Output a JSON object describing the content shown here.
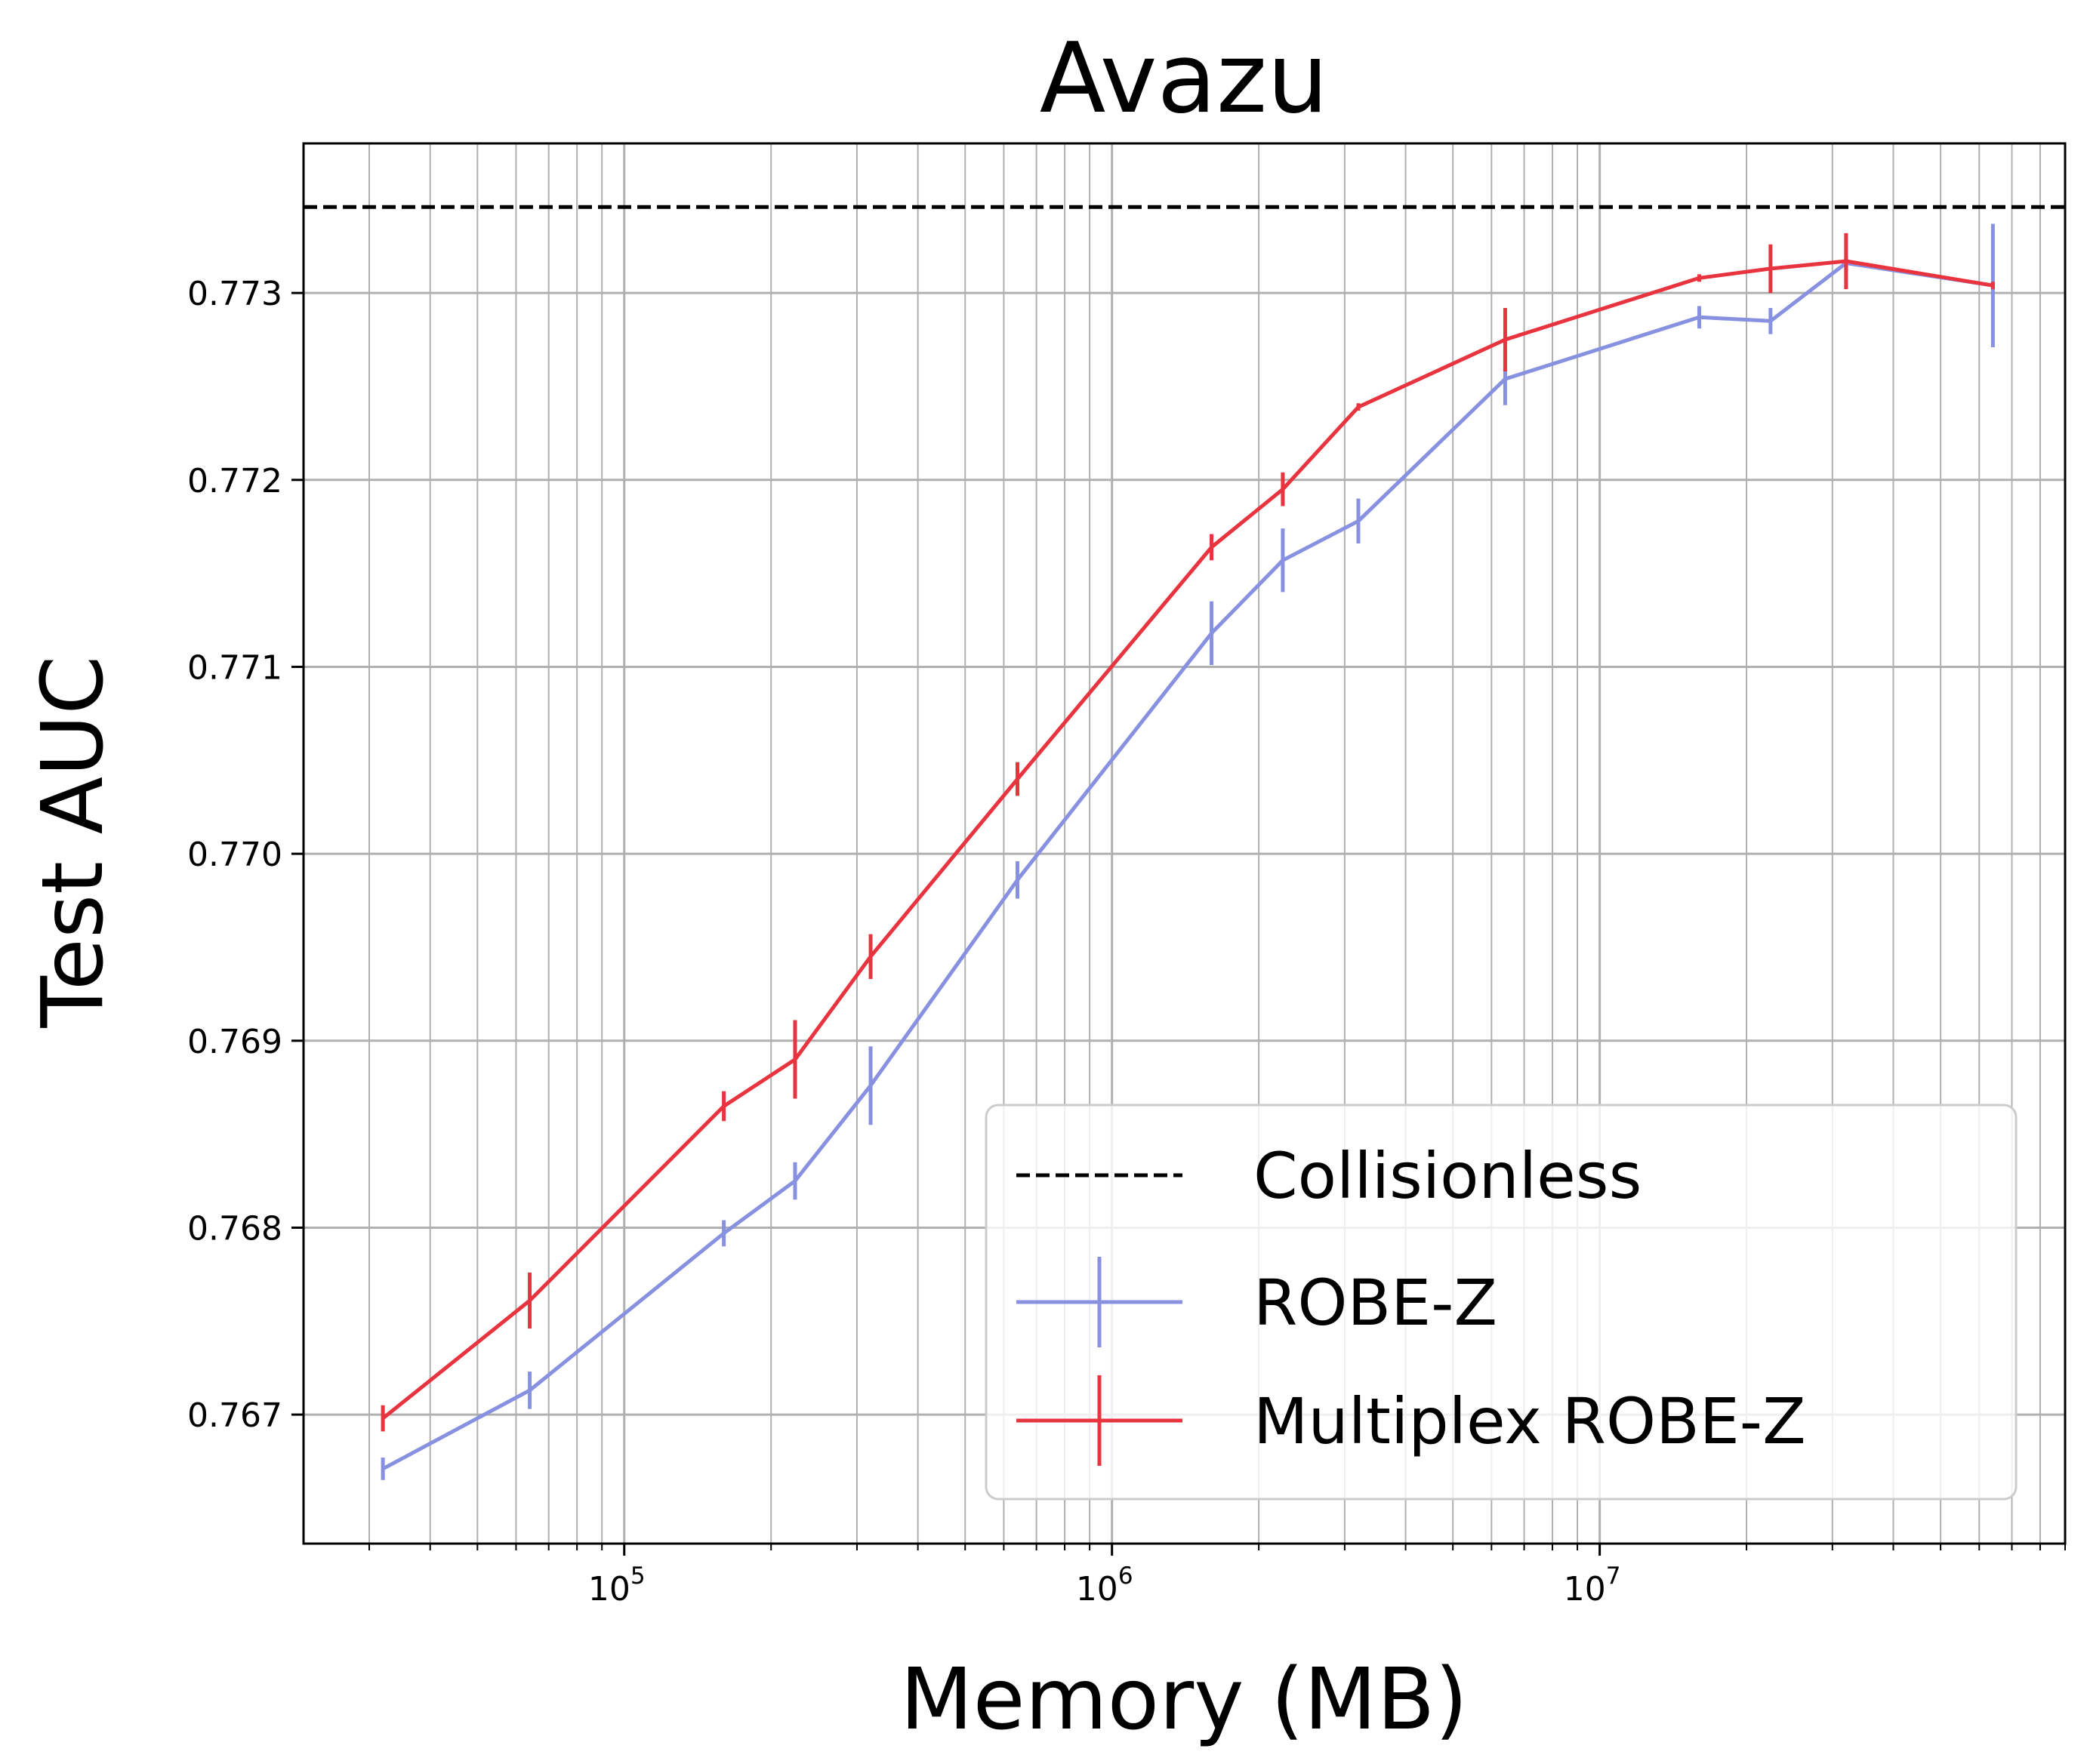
{
  "chart_data": {
    "type": "line",
    "title": "Avazu",
    "xlabel": "Memory (MB)",
    "ylabel": "Test AUC",
    "xscale": "log",
    "xlim": [
      22000,
      90000000
    ],
    "ylim": [
      0.76631,
      0.7738
    ],
    "grid": true,
    "legend_position": "lower-right",
    "yticks": [
      {
        "value": 0.767,
        "label": "0.767"
      },
      {
        "value": 0.768,
        "label": "0.768"
      },
      {
        "value": 0.769,
        "label": "0.769"
      },
      {
        "value": 0.77,
        "label": "0.770"
      },
      {
        "value": 0.771,
        "label": "0.771"
      },
      {
        "value": 0.772,
        "label": "0.772"
      },
      {
        "value": 0.773,
        "label": "0.773"
      }
    ],
    "xticks": [
      {
        "value": 100000,
        "base": "10",
        "exp": "5"
      },
      {
        "value": 1000000,
        "base": "10",
        "exp": "6"
      },
      {
        "value": 10000000,
        "base": "10",
        "exp": "7"
      }
    ],
    "baseline": {
      "name": "Collisionless",
      "y": 0.77346,
      "color": "#000000",
      "style": "dashed"
    },
    "series": [
      {
        "name": "ROBE-Z",
        "color": "#8891e0",
        "x": [
          32000,
          64000,
          160000,
          224000,
          320000,
          640000,
          1600000,
          2240000,
          3200000,
          6400000,
          16000000,
          22400000,
          32000000,
          64000000
        ],
        "y": [
          0.76671,
          0.76713,
          0.76797,
          0.76825,
          0.76876,
          0.76986,
          0.77118,
          0.77157,
          0.77178,
          0.77254,
          0.77287,
          0.77285,
          0.77316,
          0.77304
        ],
        "err": [
          6e-05,
          0.0001,
          7e-05,
          0.0001,
          0.00021,
          0.0001,
          0.00017,
          0.00017,
          0.00012,
          0.00014,
          6e-05,
          7e-05,
          4e-05,
          0.00033
        ]
      },
      {
        "name": "Multiplex ROBE-Z",
        "color": "#e8343f",
        "x": [
          32000,
          64000,
          160000,
          224000,
          320000,
          640000,
          1600000,
          2240000,
          3200000,
          6400000,
          16000000,
          22400000,
          32000000,
          64000000
        ],
        "y": [
          0.76698,
          0.76761,
          0.76865,
          0.7689,
          0.76945,
          0.7704,
          0.77164,
          0.77195,
          0.77239,
          0.77275,
          0.77308,
          0.77313,
          0.77317,
          0.77304
        ],
        "err": [
          7e-05,
          0.00015,
          8e-05,
          0.00021,
          0.00012,
          9e-05,
          7e-05,
          9e-05,
          2e-05,
          0.00017,
          2e-05,
          0.00013,
          0.00015,
          2e-05
        ]
      }
    ]
  }
}
